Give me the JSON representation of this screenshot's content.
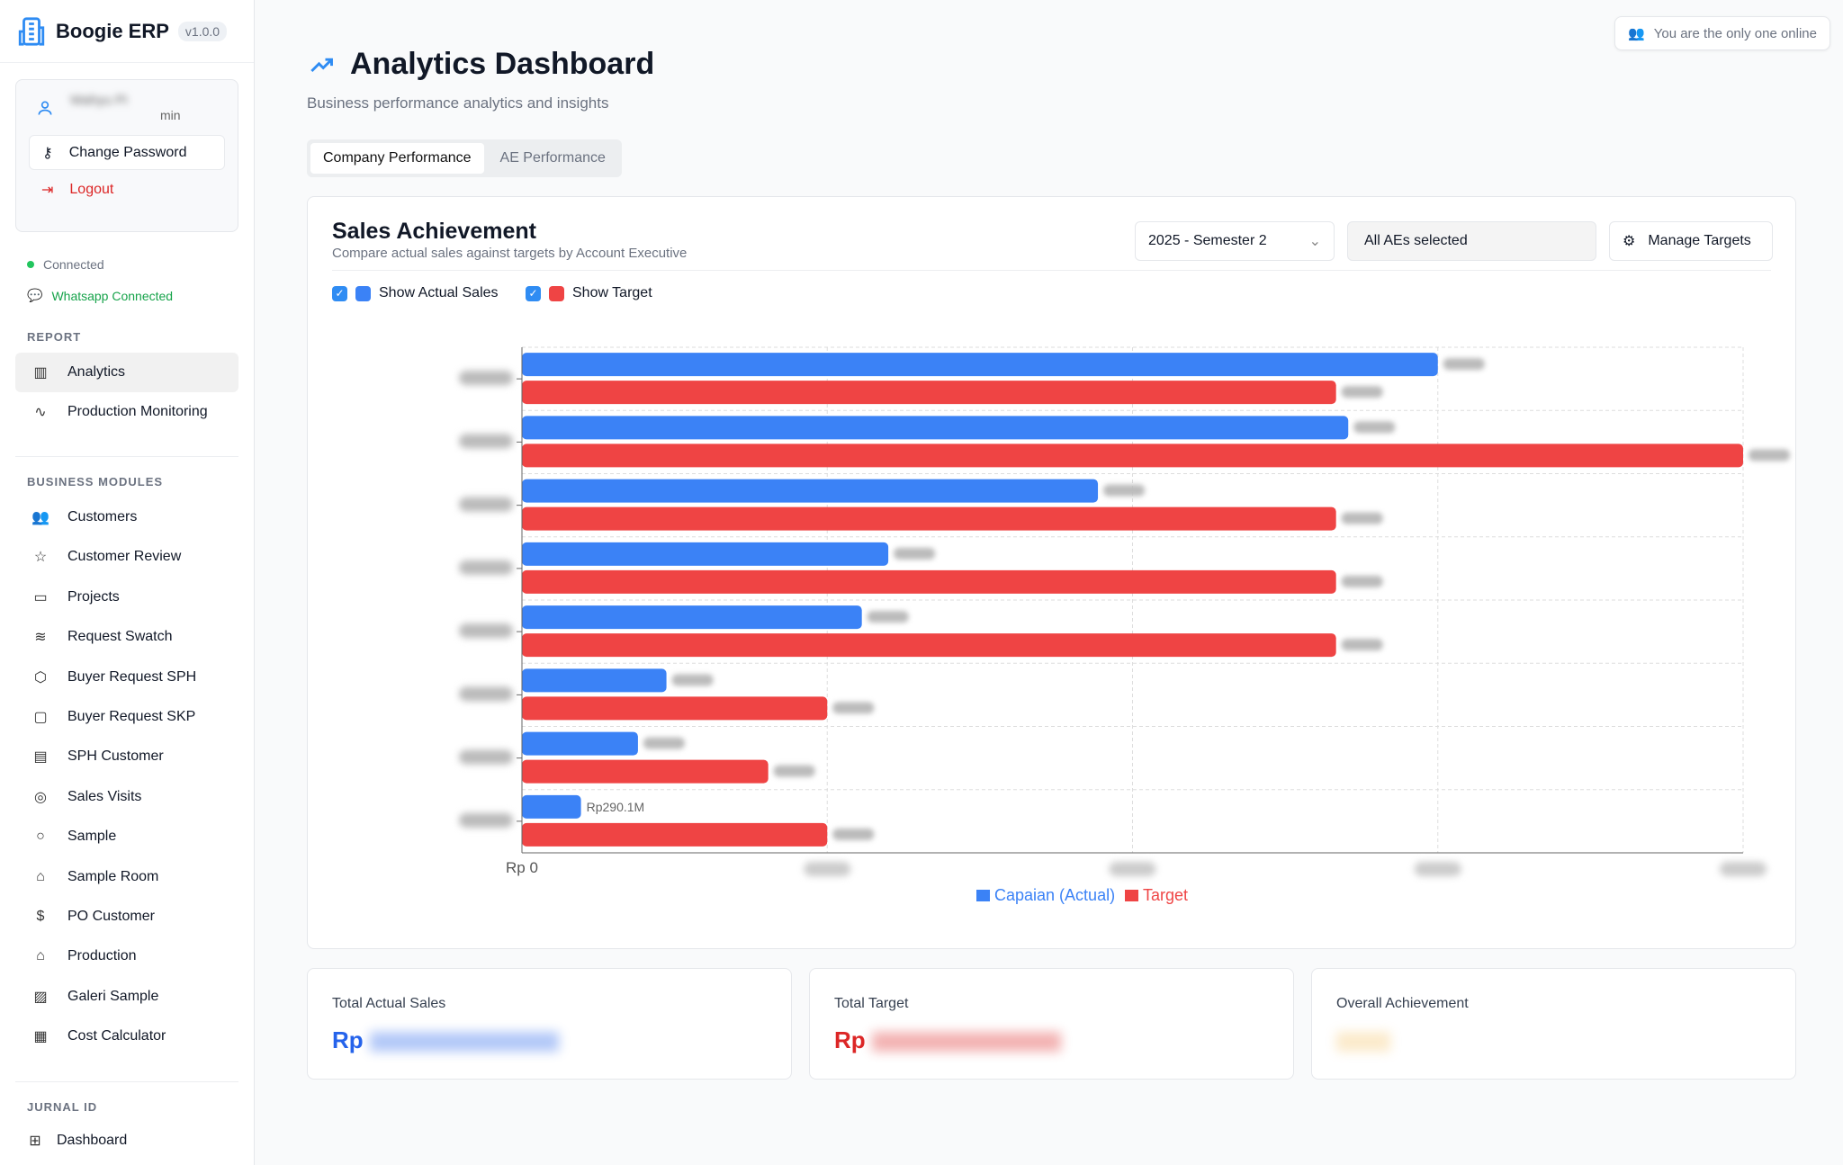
{
  "app": {
    "name": "Boogie ERP",
    "version": "v1.0.0"
  },
  "user": {
    "name": "Wahyu Pi",
    "role": "min",
    "change_password": "Change Password",
    "logout": "Logout"
  },
  "status": {
    "connection": "Connected",
    "whatsapp": "Whatsapp Connected"
  },
  "sidebar": {
    "report_title": "REPORT",
    "report": [
      {
        "label": "Analytics",
        "icon": "bar-chart-icon"
      },
      {
        "label": "Production Monitoring",
        "icon": "activity-icon"
      }
    ],
    "modules_title": "BUSINESS MODULES",
    "modules": [
      {
        "label": "Customers",
        "icon": "users-icon"
      },
      {
        "label": "Customer Review",
        "icon": "star-icon"
      },
      {
        "label": "Projects",
        "icon": "folder-icon"
      },
      {
        "label": "Request Swatch",
        "icon": "layers-icon"
      },
      {
        "label": "Buyer Request SPH",
        "icon": "package-icon"
      },
      {
        "label": "Buyer Request SKP",
        "icon": "clipboard-icon"
      },
      {
        "label": "SPH Customer",
        "icon": "file-text-icon"
      },
      {
        "label": "Sales Visits",
        "icon": "map-pin-icon"
      },
      {
        "label": "Sample",
        "icon": "circle-icon"
      },
      {
        "label": "Sample Room",
        "icon": "factory-icon"
      },
      {
        "label": "PO Customer",
        "icon": "dollar-icon"
      },
      {
        "label": "Production",
        "icon": "factory-icon"
      },
      {
        "label": "Galeri Sample",
        "icon": "image-icon"
      },
      {
        "label": "Cost Calculator",
        "icon": "calculator-icon"
      }
    ],
    "jurnal_title": "JURNAL ID",
    "jurnal": [
      {
        "label": "Dashboard",
        "icon": "grid-icon"
      }
    ]
  },
  "header": {
    "online": "You are the only one online",
    "title": "Analytics Dashboard",
    "subtitle": "Business performance analytics and insights"
  },
  "tabs": [
    "Company Performance",
    "AE Performance"
  ],
  "sales": {
    "title": "Sales Achievement",
    "subtitle": "Compare actual sales against targets by Account Executive",
    "period": "2025 - Semester 2",
    "ae_filter": "All AEs selected",
    "manage": "Manage Targets",
    "show_actual": "Show Actual Sales",
    "show_target": "Show Target"
  },
  "colors": {
    "actual": "#3b82f6",
    "target": "#ef4444",
    "accent": "#2f8cf3"
  },
  "chart_data": {
    "type": "bar",
    "orientation": "horizontal",
    "xlim": [
      0,
      6000000000
    ],
    "grid": true,
    "legend": "bottom",
    "x_tick_labels": [
      "Rp 0",
      "",
      "",
      "",
      ""
    ],
    "categories": [
      "",
      "",
      "",
      "",
      "",
      "",
      "",
      ""
    ],
    "series": [
      {
        "name": "Capaian (Actual)",
        "values": [
          4500000000,
          4060000000,
          2830000000,
          1800000000,
          1670000000,
          710000000,
          570000000,
          290100000
        ],
        "labels": [
          "",
          "",
          "",
          "",
          "",
          "",
          "",
          "Rp290.1M"
        ]
      },
      {
        "name": "Target",
        "values": [
          4000000000,
          6000000000,
          4000000000,
          4000000000,
          4000000000,
          1500000000,
          1210000000,
          1500000000
        ],
        "labels": [
          "",
          "",
          "",
          "",
          "",
          "",
          "",
          ""
        ]
      }
    ]
  },
  "summary": [
    {
      "label": "Total Actual Sales",
      "prefix": "Rp"
    },
    {
      "label": "Total Target",
      "prefix": "Rp"
    },
    {
      "label": "Overall Achievement",
      "prefix": ""
    }
  ]
}
